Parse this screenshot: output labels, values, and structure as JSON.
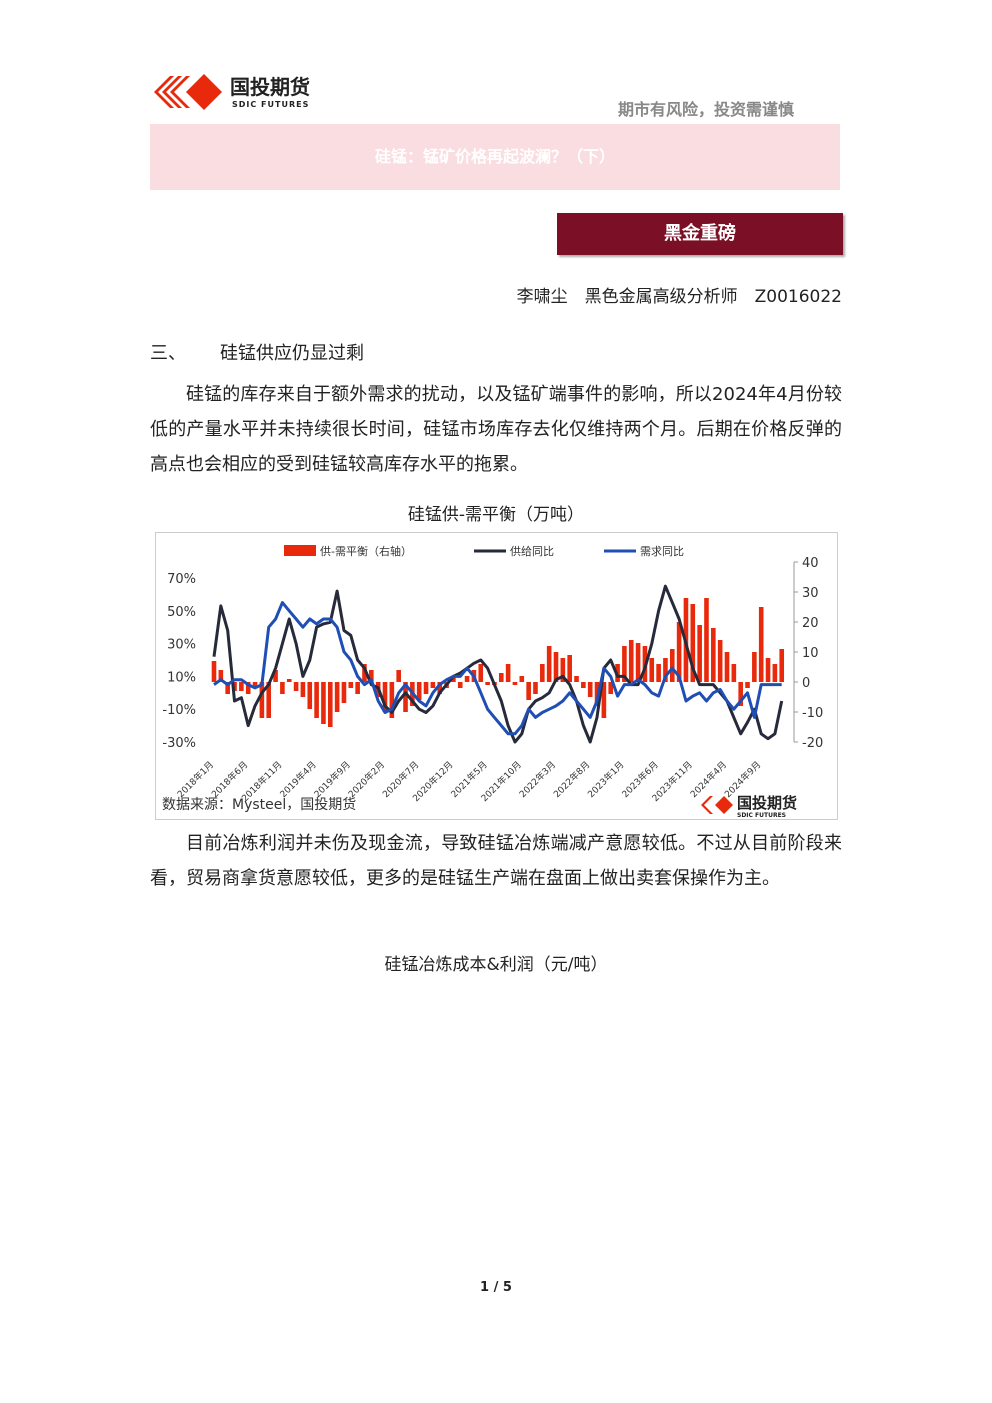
{
  "header": {
    "logo_cn": "国投期货",
    "logo_en": "SDIC FUTURES",
    "slogan": "期市有风险，投资需谨慎"
  },
  "banner": {
    "title": "硅锰：锰矿价格再起波澜？（下）"
  },
  "column": "黑金重磅",
  "author": "李啸尘　黑色金属高级分析师　Z0016022",
  "section": {
    "number": "三、",
    "title": "硅锰供应仍显过剩"
  },
  "paragraphs": [
    "硅锰的库存来自于额外需求的扰动，以及锰矿端事件的影响，所以2024年4月份较低的产量水平并未持续很长时间，硅锰市场库存去化仅维持两个月。后期在价格反弹的高点也会相应的受到硅锰较高库存水平的拖累。",
    "目前冶炼利润并未伤及现金流，导致硅锰冶炼端减产意愿较低。不过从目前阶段来看，贸易商拿货意愿较低，更多的是硅锰生产端在盘面上做出卖套保操作为主。"
  ],
  "chart_title": "硅锰供-需平衡（万吨）",
  "chart_data": {
    "type": "bar-line",
    "categories": [
      "2018年1月",
      null,
      null,
      null,
      null,
      "2018年6月",
      null,
      null,
      null,
      null,
      "2018年11月",
      null,
      null,
      null,
      null,
      "2019年4月",
      null,
      null,
      null,
      null,
      "2019年9月",
      null,
      null,
      null,
      null,
      "2020年2月",
      null,
      null,
      null,
      null,
      "2020年7月",
      null,
      null,
      null,
      null,
      "2020年12月",
      null,
      null,
      null,
      null,
      "2021年5月",
      null,
      null,
      null,
      null,
      "2021年10月",
      null,
      null,
      null,
      null,
      "2022年3月",
      null,
      null,
      null,
      null,
      "2022年8月",
      null,
      null,
      null,
      null,
      "2023年1月",
      null,
      null,
      null,
      null,
      "2023年6月",
      null,
      null,
      null,
      null,
      "2023年11月",
      null,
      null,
      null,
      null,
      "2024年4月",
      null,
      null,
      null,
      null,
      "2024年9月",
      null,
      null,
      null
    ],
    "series": [
      {
        "name": "供-需平衡（右轴）",
        "color": "#e8290b",
        "axis": "y2",
        "kind": "bar",
        "values": [
          7,
          4,
          -4,
          -3,
          -3,
          -4,
          -2,
          -12,
          -12,
          4,
          -4,
          1,
          -3,
          -5,
          -9,
          -12,
          -14,
          -15,
          -10,
          -7,
          -2,
          -4,
          6,
          4,
          -5,
          -10,
          -12,
          4,
          -10,
          -8,
          -6,
          -4,
          -2,
          -4,
          -2,
          2,
          -2,
          2,
          4,
          6,
          -1,
          -1,
          3,
          6,
          -1,
          2,
          -6,
          -4,
          6,
          12,
          10,
          8,
          9,
          2,
          -2,
          -5,
          -8,
          -12,
          -4,
          6,
          12,
          14,
          13,
          12,
          8,
          6,
          8,
          11,
          20,
          28,
          26,
          19,
          28,
          18,
          14,
          10,
          6,
          -8,
          -2,
          10,
          25,
          8,
          6,
          11
        ]
      },
      {
        "name": "供给同比",
        "color": "#262a3a",
        "kind": "line",
        "values": [
          22,
          53,
          38,
          -5,
          -3,
          -20,
          -8,
          0,
          5,
          15,
          30,
          45,
          30,
          10,
          20,
          40,
          42,
          43,
          62,
          38,
          35,
          20,
          15,
          5,
          3,
          -8,
          -12,
          -5,
          0,
          -5,
          -10,
          -12,
          -8,
          0,
          5,
          10,
          12,
          15,
          18,
          20,
          15,
          5,
          -5,
          -20,
          -30,
          -25,
          -10,
          -5,
          -3,
          0,
          8,
          10,
          5,
          -5,
          -20,
          -30,
          -15,
          15,
          20,
          10,
          10,
          5,
          5,
          15,
          30,
          50,
          65,
          55,
          45,
          30,
          15,
          5,
          5,
          5,
          0,
          -5,
          -15,
          -25,
          -18,
          -10,
          -25,
          -28,
          -25,
          -5
        ]
      },
      {
        "name": "需求同比",
        "color": "#1f4eb4",
        "kind": "line",
        "values": [
          5,
          8,
          5,
          8,
          8,
          5,
          3,
          5,
          40,
          45,
          55,
          50,
          45,
          40,
          45,
          42,
          45,
          45,
          40,
          25,
          20,
          10,
          5,
          8,
          -5,
          -12,
          -10,
          0,
          5,
          0,
          -5,
          -8,
          0,
          5,
          8,
          10,
          10,
          15,
          10,
          0,
          -10,
          -15,
          -20,
          -25,
          -25,
          -20,
          -10,
          -15,
          -12,
          -10,
          -8,
          -5,
          0,
          -5,
          -10,
          -15,
          -5,
          15,
          10,
          -2,
          5,
          5,
          8,
          5,
          0,
          -2,
          10,
          15,
          10,
          -5,
          -2,
          0,
          -5,
          0,
          2,
          -5,
          -10,
          -5,
          0,
          -15,
          5,
          5,
          5,
          5
        ]
      }
    ],
    "ylim": [
      -30,
      70
    ],
    "yticks": [
      {
        "value": -30,
        "label": "-30%"
      },
      {
        "value": -10,
        "label": "-10%"
      },
      {
        "value": 10,
        "label": "10%"
      },
      {
        "value": 30,
        "label": "30%"
      },
      {
        "value": 50,
        "label": "50%"
      },
      {
        "value": 70,
        "label": "70%"
      }
    ],
    "y2lim": [
      -20,
      40
    ],
    "y2ticks": [
      -20,
      -10,
      0,
      10,
      20,
      30,
      40
    ],
    "source": "数据来源：Mysteel，国投期货"
  },
  "chart2_title": "硅锰冶炼成本&利润（元/吨）",
  "page_number": "1 / 5"
}
